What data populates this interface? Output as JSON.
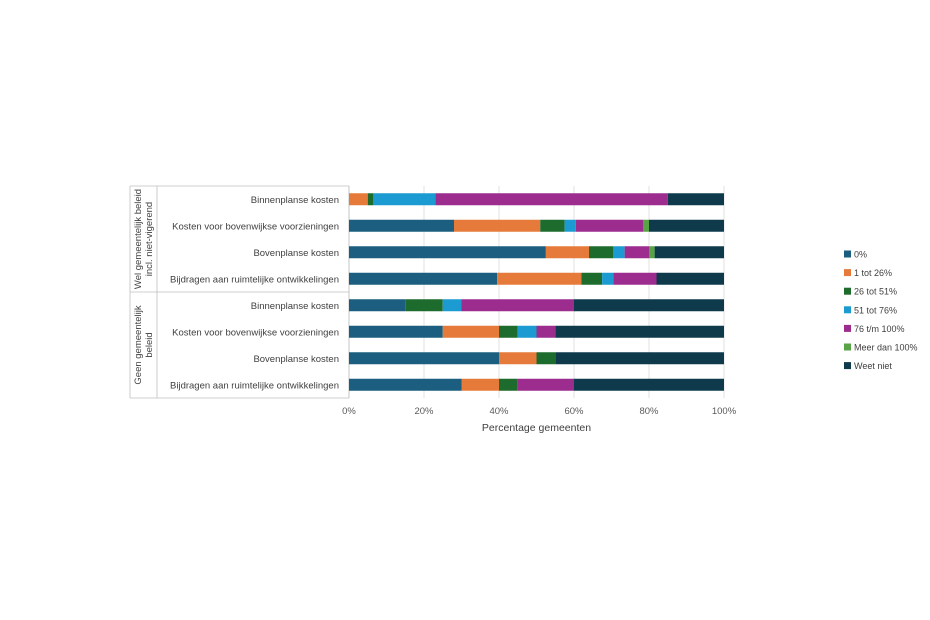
{
  "chart_data": {
    "type": "bar",
    "orientation": "horizontal",
    "stacked": "percent",
    "xlabel": "Percentage gemeenten",
    "xlim": [
      0,
      100
    ],
    "x_ticks": [
      "0%",
      "20%",
      "40%",
      "60%",
      "80%",
      "100%"
    ],
    "legend_position": "right",
    "groups": [
      {
        "label_lines": [
          "Wel gemeentelijk beleid",
          "incl. niet-vigerend"
        ],
        "categories": [
          "Binnenplanse kosten",
          "Kosten voor bovenwijkse voorzieningen",
          "Bovenplanse kosten",
          "Bijdragen aan ruimtelijke ontwikkelingen"
        ]
      },
      {
        "label_lines": [
          "Geen gemeentelijk",
          "beleid"
        ],
        "categories": [
          "Binnenplanse kosten",
          "Kosten voor bovenwijkse voorzieningen",
          "Bovenplanse kosten",
          "Bijdragen aan ruimtelijke ontwikkelingen"
        ]
      }
    ],
    "series": [
      {
        "name": "0%",
        "color": "#1b5e7f",
        "values": [
          0,
          28,
          52.5,
          39.5,
          15,
          25,
          40,
          30
        ]
      },
      {
        "name": "1 tot 26%",
        "color": "#e57a3a",
        "values": [
          5,
          23,
          11.5,
          22.5,
          0,
          15,
          10,
          10
        ]
      },
      {
        "name": "26 tot 51%",
        "color": "#1e6b2e",
        "values": [
          1.5,
          6.5,
          6.5,
          5.5,
          10,
          5,
          5,
          5
        ]
      },
      {
        "name": "51 tot 76%",
        "color": "#1b9bd1",
        "values": [
          16.5,
          3,
          3,
          3,
          5,
          5,
          0,
          0
        ]
      },
      {
        "name": "76 t/m 100%",
        "color": "#9c2c8e",
        "values": [
          62,
          18,
          6.5,
          11.5,
          30,
          5,
          0,
          15
        ]
      },
      {
        "name": "Meer dan 100%",
        "color": "#58a345",
        "values": [
          0,
          1.5,
          1.5,
          0,
          0,
          0,
          0,
          0
        ]
      },
      {
        "name": "Weet niet",
        "color": "#0f3a4c",
        "values": [
          15,
          20,
          18.5,
          18,
          40,
          45,
          45,
          40
        ]
      }
    ]
  }
}
